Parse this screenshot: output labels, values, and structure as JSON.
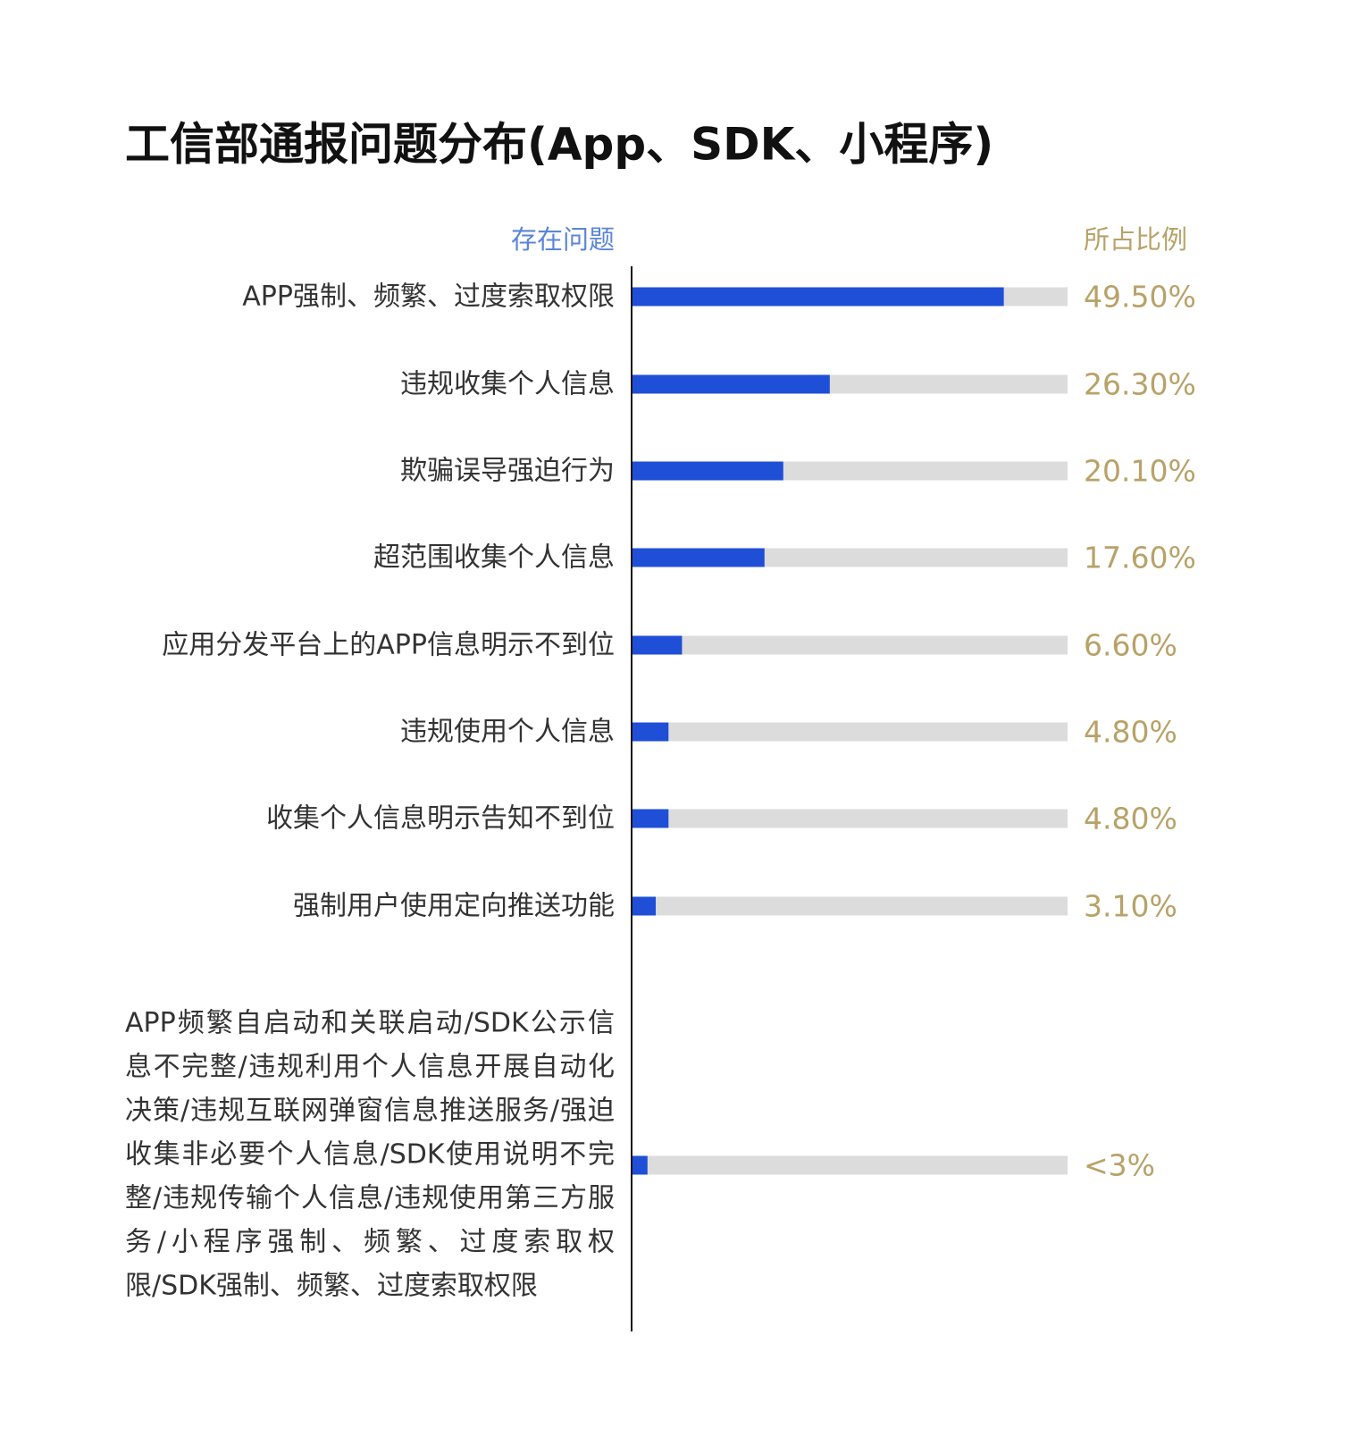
{
  "chart_data": {
    "type": "hbar",
    "title": "工信部通报问题分布(App、SDK、小程序)",
    "category_header": "存在问题",
    "value_header": "所占比例",
    "categories": [
      "APP强制、频繁、过度索取权限",
      "违规收集个人信息",
      "欺骗误导强迫行为",
      "超范围收集个人信息",
      "应用分发平台上的APP信息明示不到位",
      "违规使用个人信息",
      "收集个人信息明示告知不到位",
      "强制用户使用定向推送功能",
      "APP频繁自启动和关联启动/SDK公示信息不完整/违规利用个人信息开展自动化决策/违规互联网弹窗信息推送服务/强迫收集非必要个人信息/SDK使用说明不完整/违规传输个人信息/违规使用第三方服务/小程序强制、频繁、过度索取权限/SDK强制、频繁、过度索取权限"
    ],
    "values": [
      49.5,
      26.3,
      20.1,
      17.6,
      6.6,
      4.8,
      4.8,
      3.1,
      2
    ],
    "value_labels": [
      "49.50%",
      "26.30%",
      "20.10%",
      "17.60%",
      "6.60%",
      "4.80%",
      "4.80%",
      "3.10%",
      "<3%"
    ],
    "color": "#1f4fd6",
    "track_color": "#dcdcdc",
    "xlim": [
      0,
      58
    ]
  }
}
